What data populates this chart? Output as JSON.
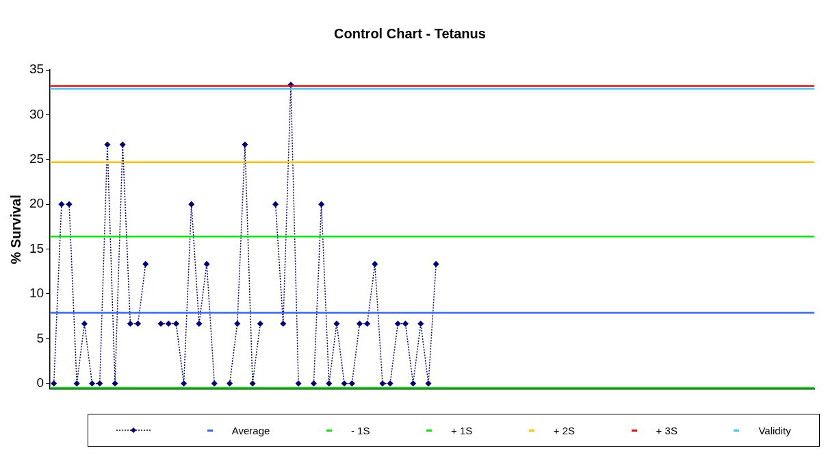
{
  "chart_data": {
    "type": "line",
    "title": "Control Chart - Tetanus",
    "ylabel": "% Survival",
    "categories": [
      null,
      null,
      null,
      null,
      null,
      null,
      null,
      null,
      null,
      null,
      null,
      null,
      null,
      null,
      null,
      null,
      null,
      null,
      null,
      null,
      null,
      null,
      null,
      null,
      null,
      null,
      null,
      null,
      null,
      null,
      null,
      null,
      null,
      null,
      null,
      null,
      null,
      null,
      null,
      null,
      null,
      null,
      null,
      null,
      null,
      null,
      null,
      null,
      null,
      null,
      null,
      null,
      null,
      null,
      null,
      null,
      null,
      null,
      null,
      null,
      null,
      null,
      null,
      null,
      null,
      null,
      null,
      null,
      null,
      null,
      null,
      null,
      null,
      null,
      null,
      null,
      null,
      null,
      null,
      null,
      null,
      null,
      null,
      null,
      null,
      null,
      null,
      null,
      null,
      null,
      null,
      null,
      null,
      null,
      null,
      null,
      null,
      null,
      null,
      null
    ],
    "series": [
      {
        "color": "#000080",
        "values": [
          0,
          20,
          20,
          0,
          6.67,
          0,
          0,
          26.67,
          0,
          26.67,
          6.67,
          6.67,
          13.33,
          null,
          6.67,
          6.67,
          6.67,
          0,
          20,
          6.67,
          13.33,
          0,
          null,
          0,
          6.67,
          26.67,
          0,
          6.67,
          null,
          20,
          6.67,
          33.33,
          0,
          null,
          0,
          20,
          0,
          6.67,
          0,
          0,
          6.67,
          6.67,
          13.33,
          0,
          0,
          6.67,
          6.67,
          0,
          6.67,
          0,
          13.33,
          null,
          null,
          null,
          null,
          null,
          null,
          null,
          null,
          null,
          null,
          null,
          null,
          null,
          null,
          null,
          null,
          null,
          null,
          null,
          null,
          null,
          null,
          null,
          null,
          null,
          null,
          null,
          null,
          null,
          null,
          null,
          null,
          null,
          null,
          null,
          null,
          null,
          null,
          null,
          null,
          null,
          null,
          null,
          null,
          null,
          null,
          null,
          null,
          null
        ]
      }
    ],
    "ref_lines": [
      {
        "axis": "y",
        "value": 7.9,
        "label": "Average",
        "color": "#3366ff"
      },
      {
        "axis": "y",
        "value": -0.5,
        "label": "- 1S",
        "color": "#00ee00"
      },
      {
        "axis": "y",
        "value": 16.4,
        "label": "+ 1S",
        "color": "#00ee00"
      },
      {
        "axis": "y",
        "value": 24.7,
        "label": "+ 2S",
        "color": "#ffc000"
      },
      {
        "axis": "y",
        "value": 33.2,
        "label": "+ 3S",
        "color": "#ff0000"
      },
      {
        "axis": "y",
        "value": 32.9,
        "label": "Validity",
        "color": "#33ccff"
      }
    ],
    "ylim": [
      -0.6,
      35
    ],
    "yticks": [
      0,
      5,
      10,
      15,
      20,
      25,
      30,
      35
    ],
    "grid": false,
    "legend": "bottom",
    "marker": "diamond",
    "line_style": "dotted"
  }
}
